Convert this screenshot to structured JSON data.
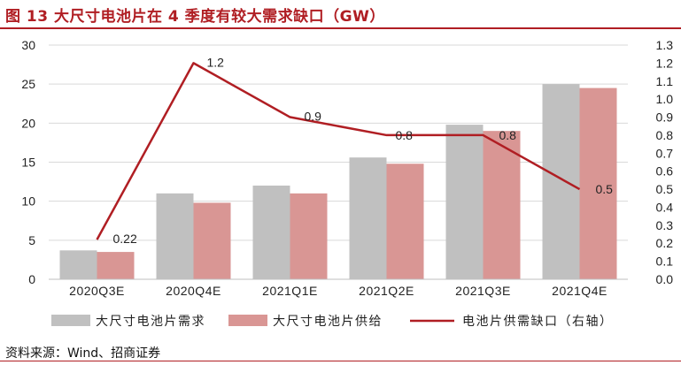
{
  "title": "图 13 大尺寸电池片在 4 季度有较大需求缺口（GW）",
  "source": "资料来源：Wind、招商证券",
  "chart_data": {
    "type": "bar",
    "categories": [
      "2020Q3E",
      "2020Q4E",
      "2021Q1E",
      "2021Q2E",
      "2021Q3E",
      "2021Q4E"
    ],
    "series": [
      {
        "name": "大尺寸电池片需求",
        "type": "bar",
        "axis": "left",
        "color": "#c0c0c0",
        "values": [
          3.7,
          11.0,
          12.0,
          15.6,
          19.8,
          25.0
        ]
      },
      {
        "name": "大尺寸电池片供给",
        "type": "bar",
        "axis": "left",
        "color": "#d99694",
        "values": [
          3.5,
          9.8,
          11.0,
          14.8,
          19.0,
          24.5
        ]
      },
      {
        "name": "电池片供需缺口（右轴）",
        "type": "line",
        "axis": "right",
        "color": "#b01e23",
        "values": [
          0.22,
          1.2,
          0.9,
          0.8,
          0.8,
          0.5
        ],
        "labels": [
          "0.22",
          "1.2",
          "0.9",
          "0.8",
          "0.8",
          "0.5"
        ]
      }
    ],
    "y_left": {
      "min": 0,
      "max": 30,
      "ticks": [
        "0",
        "5",
        "10",
        "15",
        "20",
        "25",
        "30"
      ]
    },
    "y_right": {
      "min": 0,
      "max": 1.3,
      "ticks": [
        "0.0",
        "0.1",
        "0.2",
        "0.3",
        "0.4",
        "0.5",
        "0.6",
        "0.7",
        "0.8",
        "0.9",
        "1.0",
        "1.1",
        "1.2",
        "1.3"
      ]
    },
    "grid": true,
    "legend_position": "bottom"
  }
}
